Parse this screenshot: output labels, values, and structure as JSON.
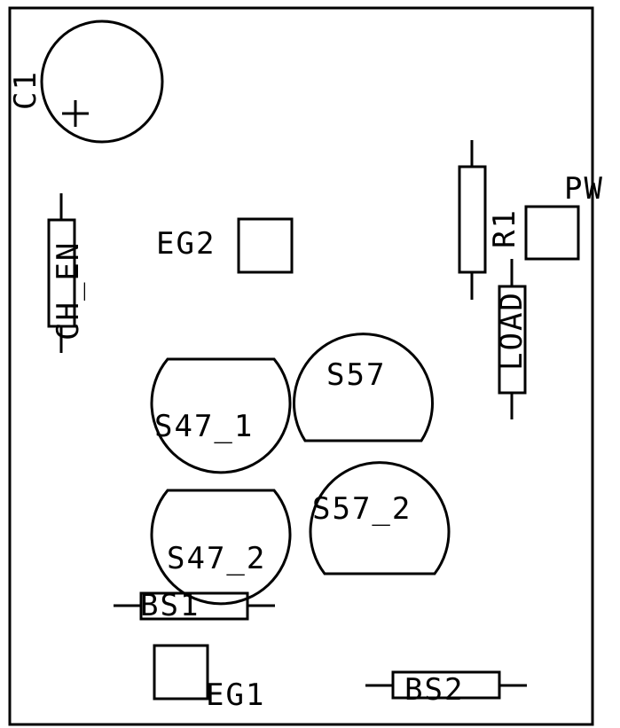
{
  "labels": {
    "c1": "C1",
    "c1_polarity": "+",
    "eg2": "EG2",
    "eg1": "EG1",
    "r1": "R1",
    "pw": "PW",
    "ch_en": "CH_EN",
    "load": "LOAD",
    "s547_1": "S47_1",
    "s547_2": "S47_2",
    "s557": "S57",
    "s557_2": "S57_2",
    "bs1": "BS1",
    "bs2": "BS2"
  }
}
